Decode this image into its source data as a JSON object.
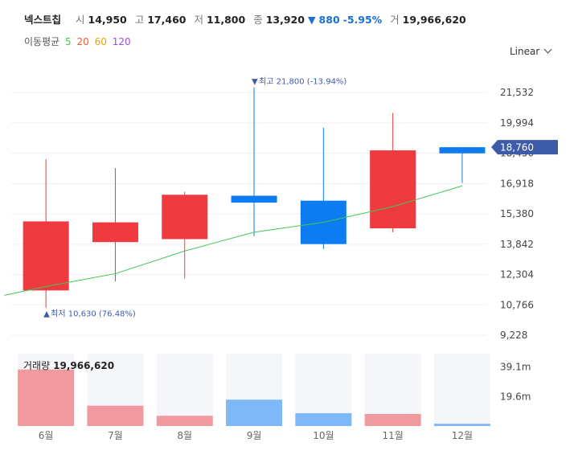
{
  "header": {
    "name": "넥스트칩",
    "open_label": "시",
    "open": "14,950",
    "high_label": "고",
    "high": "17,460",
    "low_label": "저",
    "low": "11,800",
    "close_label": "종",
    "close": "13,920",
    "change_arrow": "▼",
    "change": "880",
    "change_pct": "-5.95%",
    "volume_label": "거",
    "volume": "19,966,620"
  },
  "ma": {
    "label": "이동평균",
    "p5": "5",
    "p20": "20",
    "p60": "60",
    "p120": "120"
  },
  "scale": {
    "label": "Linear"
  },
  "colors": {
    "up": "#ef3a3f",
    "down": "#0c7cf0",
    "ma5": "#44c755",
    "ma20": "#ef5a2a",
    "ma60": "#e8a400",
    "ma120": "#9a4ee0",
    "up_vol": "#f09aa0",
    "down_vol": "#7fb8f7",
    "current": "#3e5ba8",
    "annot": "#3e5ba8"
  },
  "chart_data": {
    "type": "candlestick",
    "categories": [
      "6월",
      "7월",
      "8월",
      "9월",
      "10월",
      "11월",
      "12월"
    ],
    "open": [
      11500,
      13950,
      14100,
      16300,
      16050,
      14650,
      18760
    ],
    "high": [
      18150,
      17700,
      16500,
      21800,
      19750,
      20500,
      18760
    ],
    "low": [
      10630,
      11950,
      12100,
      14250,
      13600,
      14450,
      16950
    ],
    "close": [
      15000,
      14950,
      16350,
      15950,
      13850,
      18600,
      18450
    ],
    "volume": [
      37500000,
      13500000,
      6800000,
      17500000,
      8500000,
      8000000,
      1500000
    ],
    "ma5": [
      [
        -0.6,
        11250
      ],
      [
        0,
        11700
      ],
      [
        1,
        12350
      ],
      [
        2,
        13500
      ],
      [
        3,
        14450
      ],
      [
        4,
        14950
      ],
      [
        5,
        15750
      ],
      [
        6,
        16800
      ]
    ],
    "y_ticks": [
      "21,532",
      "19,994",
      "18,456",
      "16,918",
      "15,380",
      "13,842",
      "12,304",
      "10,766",
      "9,228"
    ],
    "ylim": [
      8700,
      22800
    ],
    "vol_ticks": [
      "39.1m",
      "19.6m"
    ],
    "vol_lim": [
      0,
      48000000
    ],
    "current_price": "18,760",
    "max_label": "최고 21,800 (-13.94%)",
    "min_label": "최저 10,630 (76.48%)",
    "volume_title": "거래량",
    "volume_value": "19,966,620"
  }
}
